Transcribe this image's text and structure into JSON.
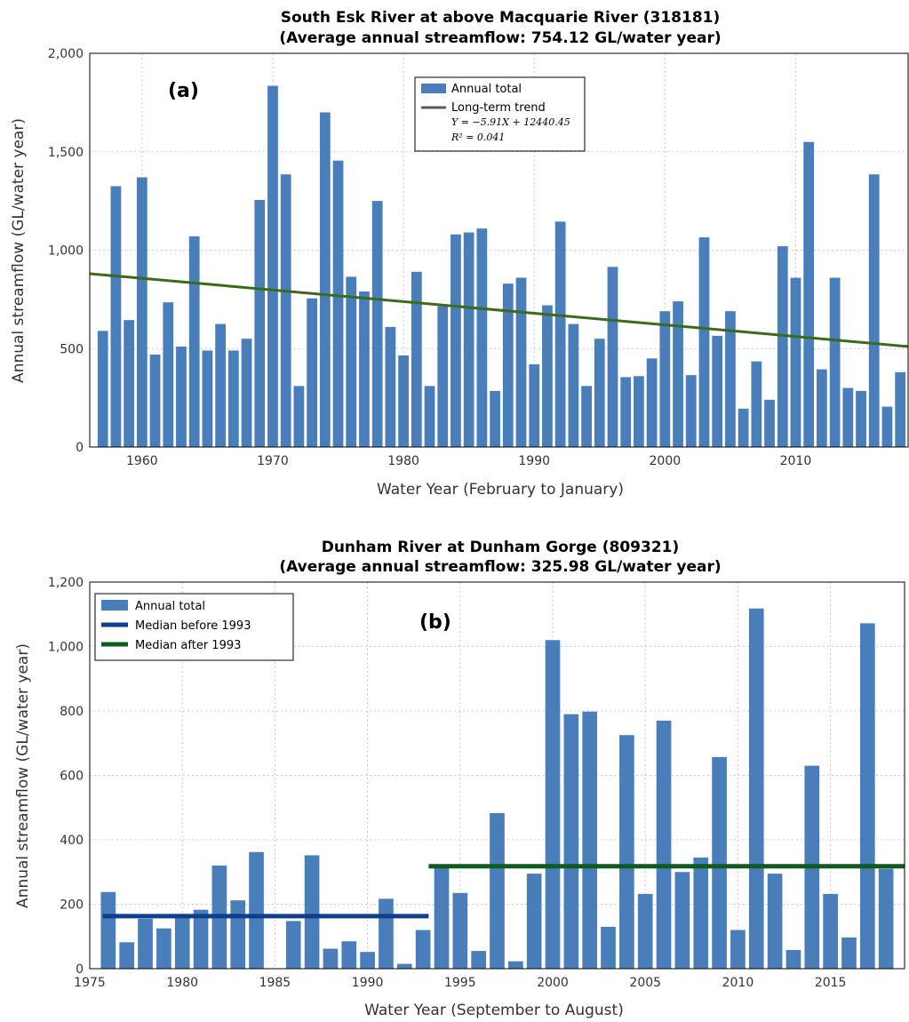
{
  "chart_data": [
    {
      "type": "bar",
      "panel_label": "(a)",
      "title": "South Esk River at above Macquarie River (318181)",
      "subtitle": "(Average annual streamflow: 754.12 GL/water year)",
      "xlabel": "Water Year (February to January)",
      "ylabel": "Annual streamflow (GL/water year)",
      "xlim": [
        1956,
        2018.6
      ],
      "ylim": [
        0,
        2000
      ],
      "xticks": [
        1960,
        1970,
        1980,
        1990,
        2000,
        2010
      ],
      "xtick_labels": [
        "1960",
        "1970",
        "1980",
        "1990",
        "2000",
        "2010"
      ],
      "yticks": [
        0,
        500,
        1000,
        1500,
        2000
      ],
      "ytick_labels": [
        "0",
        "500",
        "1,000",
        "1,500",
        "2,000"
      ],
      "grid": true,
      "legend_position": "top-center",
      "bar_color": "#4a7ebb",
      "trend_color": "#3a6a1a",
      "x": [
        1957,
        1958,
        1959,
        1960,
        1961,
        1962,
        1963,
        1964,
        1965,
        1966,
        1967,
        1968,
        1969,
        1970,
        1971,
        1972,
        1973,
        1974,
        1975,
        1976,
        1977,
        1978,
        1979,
        1980,
        1981,
        1982,
        1983,
        1984,
        1985,
        1986,
        1987,
        1988,
        1989,
        1990,
        1991,
        1992,
        1993,
        1994,
        1995,
        1996,
        1997,
        1998,
        1999,
        2000,
        2001,
        2002,
        2003,
        2004,
        2005,
        2006,
        2007,
        2008,
        2009,
        2010,
        2011,
        2012,
        2013,
        2014,
        2015,
        2016,
        2017,
        2018
      ],
      "values": [
        590,
        1325,
        645,
        1370,
        470,
        735,
        510,
        1070,
        490,
        625,
        490,
        550,
        1255,
        1835,
        1385,
        310,
        755,
        1700,
        1455,
        865,
        790,
        1250,
        610,
        465,
        890,
        310,
        715,
        1080,
        1090,
        1110,
        285,
        830,
        860,
        420,
        720,
        1145,
        625,
        310,
        550,
        915,
        355,
        360,
        450,
        690,
        740,
        365,
        1065,
        565,
        690,
        195,
        435,
        240,
        1020,
        860,
        1550,
        395,
        860,
        300,
        285,
        1385,
        205,
        380
      ],
      "series": [
        {
          "name": "Annual total",
          "kind": "bar"
        },
        {
          "name": "Long-term trend",
          "kind": "line",
          "equation": "Y = −5.91X + 12440.45",
          "r2": "R² = 0.041",
          "slope": -5.91,
          "intercept": 12440.45
        }
      ]
    },
    {
      "type": "bar",
      "panel_label": "(b)",
      "title": "Dunham River at Dunham Gorge (809321)",
      "subtitle": "(Average annual streamflow: 325.98 GL/water year)",
      "xlabel": "Water Year (September to August)",
      "ylabel": "Annual streamflow (GL/water year)",
      "xlim": [
        1975,
        2019
      ],
      "ylim": [
        0,
        1200
      ],
      "xticks": [
        1975,
        1980,
        1985,
        1990,
        1995,
        2000,
        2005,
        2010,
        2015
      ],
      "xtick_labels": [
        "1975",
        "1980",
        "1985",
        "1990",
        "1995",
        "2000",
        "2005",
        "2010",
        "2015"
      ],
      "yticks": [
        0,
        200,
        400,
        600,
        800,
        1000,
        1200
      ],
      "ytick_labels": [
        "0",
        "200",
        "400",
        "600",
        "800",
        "1,000",
        "1,200"
      ],
      "grid": true,
      "legend_position": "top-left",
      "bar_color": "#4a7ebb",
      "x": [
        1976,
        1977,
        1978,
        1979,
        1980,
        1981,
        1982,
        1983,
        1984,
        1985,
        1986,
        1987,
        1988,
        1989,
        1990,
        1991,
        1992,
        1993,
        1994,
        1995,
        1996,
        1997,
        1998,
        1999,
        2000,
        2001,
        2002,
        2003,
        2004,
        2005,
        2006,
        2007,
        2008,
        2009,
        2010,
        2011,
        2012,
        2013,
        2014,
        2015,
        2016,
        2017,
        2018
      ],
      "values": [
        238,
        82,
        155,
        125,
        170,
        183,
        320,
        212,
        362,
        0,
        148,
        352,
        62,
        85,
        52,
        217,
        15,
        120,
        315,
        235,
        55,
        483,
        23,
        295,
        1020,
        790,
        798,
        130,
        725,
        232,
        770,
        300,
        345,
        657,
        120,
        1118,
        295,
        58,
        630,
        232,
        97,
        1072,
        310
      ],
      "series": [
        {
          "name": "Annual total",
          "kind": "bar",
          "color": "#4a7ebb"
        },
        {
          "name": "Median before 1993",
          "kind": "line",
          "color": "#0f3f8c",
          "value": 163,
          "x_range": [
            1975.7,
            1993.3
          ]
        },
        {
          "name": "Median after 1993",
          "kind": "line",
          "color": "#0e5a20",
          "value": 318,
          "x_range": [
            1993.3,
            2019
          ]
        }
      ]
    }
  ]
}
